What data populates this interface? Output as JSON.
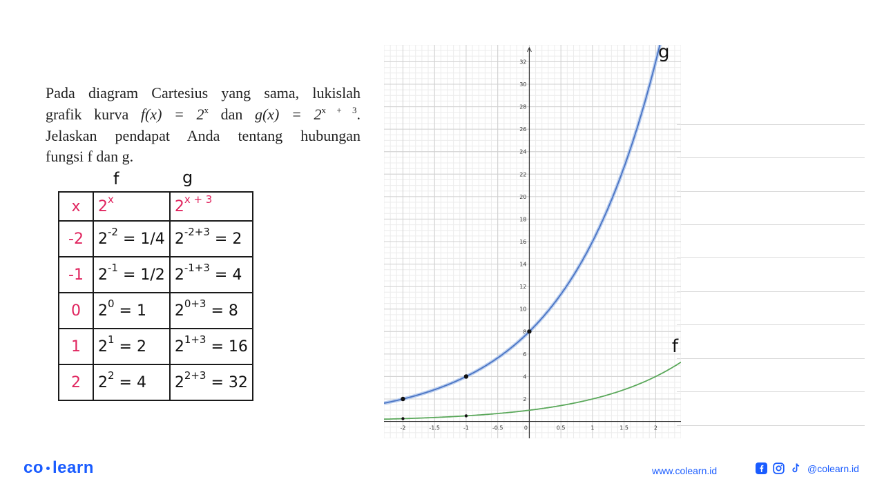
{
  "problem": {
    "line1": "Pada diagram Cartesius yang sama, lukislah",
    "line2_pre": "grafik kurva ",
    "f_def": "f(x) = 2",
    "f_exp": "x",
    "line2_mid": " dan ",
    "g_def": "g(x) = 2",
    "g_exp": "x + 3",
    "line2_end": ".",
    "line3": "Jelaskan pendapat Anda tentang hubungan",
    "line4": "fungsi f dan g."
  },
  "handwritten": {
    "f_label": "f",
    "g_label": "g"
  },
  "table": {
    "header": {
      "x": "x",
      "f_base": "2",
      "f_exp": "x",
      "g_base": "2",
      "g_exp": "x + 3"
    },
    "rows": [
      {
        "x": "-2",
        "f_base": "2",
        "f_exp": "-2",
        "f_result": "= 1/4",
        "g_base": "2",
        "g_exp": "-2+3",
        "g_result": "= 2"
      },
      {
        "x": "-1",
        "f_base": "2",
        "f_exp": "-1",
        "f_result": "= 1/2",
        "g_base": "2",
        "g_exp": "-1+3",
        "g_result": "= 4"
      },
      {
        "x": "0",
        "f_base": "2",
        "f_exp": "0",
        "f_result": "= 1",
        "g_base": "2",
        "g_exp": "0+3",
        "g_result": "= 8"
      },
      {
        "x": "1",
        "f_base": "2",
        "f_exp": "1",
        "f_result": "= 2",
        "g_base": "2",
        "g_exp": "1+3",
        "g_result": "= 16"
      },
      {
        "x": "2",
        "f_base": "2",
        "f_exp": "2",
        "f_result": "= 4",
        "g_base": "2",
        "g_exp": "2+3",
        "g_result": "= 32"
      }
    ]
  },
  "chart_data": {
    "type": "line",
    "xlim": [
      -2.3,
      2.4
    ],
    "ylim": [
      -1.5,
      33.5
    ],
    "grid": true,
    "x_ticks": [
      -2,
      -1.5,
      -1,
      -0.5,
      0,
      0.5,
      1,
      1.5,
      2
    ],
    "x_tick_labels": [
      "-2",
      "-1.5",
      "-1",
      "-0.5",
      "0",
      "0.5",
      "1",
      "1.5",
      "2"
    ],
    "y_ticks": [
      2,
      4,
      6,
      8,
      10,
      12,
      14,
      16,
      18,
      20,
      22,
      24,
      26,
      28,
      30,
      32
    ],
    "y_tick_labels": [
      "2",
      "4",
      "6",
      "8",
      "10",
      "12",
      "14",
      "16",
      "18",
      "20",
      "22",
      "24",
      "26",
      "28",
      "30",
      "32"
    ],
    "series": [
      {
        "name": "f",
        "formula": "2^x",
        "color": "#5aa85a",
        "points": [
          [
            -2,
            0.25
          ],
          [
            -1,
            0.5
          ]
        ]
      },
      {
        "name": "g",
        "formula": "2^(x+3)",
        "color": "#4a74c4",
        "points": [
          [
            -2,
            2
          ],
          [
            -1,
            4
          ],
          [
            0,
            8
          ]
        ]
      }
    ]
  },
  "footer": {
    "brand_left": "co",
    "brand_right": "learn",
    "website": "www.colearn.id",
    "social_handle": "@colearn.id",
    "brand_color": "#1a5cff"
  }
}
